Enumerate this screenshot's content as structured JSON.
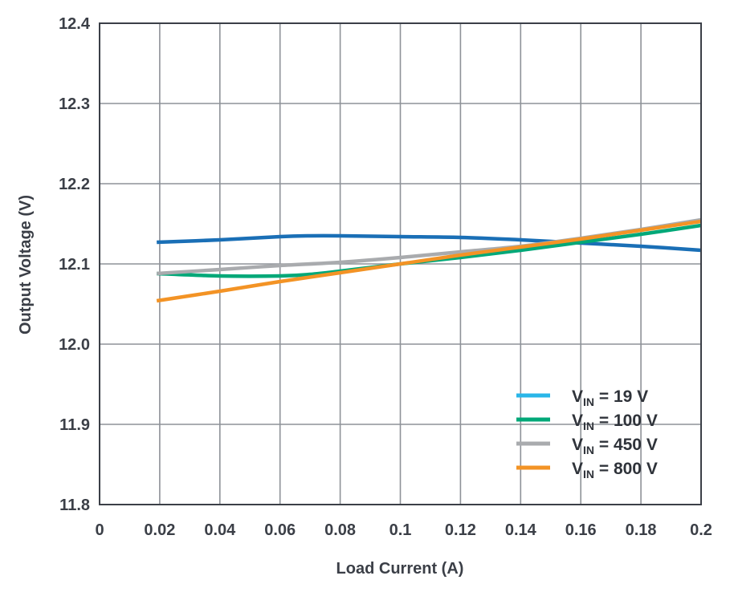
{
  "chart_data": {
    "type": "line",
    "xlabel": "Load Current (A)",
    "ylabel": "Output Voltage (V)",
    "xlim": [
      0,
      0.2
    ],
    "ylim": [
      11.8,
      12.4
    ],
    "grid": true,
    "legend_position": "bottom-right",
    "x_ticks": [
      {
        "value": 0,
        "label": "0"
      },
      {
        "value": 0.02,
        "label": "0.02"
      },
      {
        "value": 0.04,
        "label": "0.04"
      },
      {
        "value": 0.06,
        "label": "0.06"
      },
      {
        "value": 0.08,
        "label": "0.08"
      },
      {
        "value": 0.1,
        "label": "0.1"
      },
      {
        "value": 0.12,
        "label": "0.12"
      },
      {
        "value": 0.14,
        "label": "0.14"
      },
      {
        "value": 0.16,
        "label": "0.16"
      },
      {
        "value": 0.18,
        "label": "0.18"
      },
      {
        "value": 0.2,
        "label": "0.2"
      }
    ],
    "y_ticks": [
      {
        "value": 12.4,
        "label": "12.4"
      },
      {
        "value": 12.3,
        "label": "12.3"
      },
      {
        "value": 12.2,
        "label": "12.2"
      },
      {
        "value": 12.1,
        "label": "12.1"
      },
      {
        "value": 12.0,
        "label": "12.0"
      },
      {
        "value": 11.9,
        "label": "11.9"
      },
      {
        "value": 11.8,
        "label": "11.8"
      }
    ],
    "series": [
      {
        "name": "VIN = 19 V",
        "legend_main": "V",
        "legend_sub": "IN",
        "legend_rest": " = 19 V",
        "color": "#1a6fb6",
        "legend_color": "#29b6e8",
        "x": [
          0.019,
          0.04,
          0.06,
          0.07,
          0.08,
          0.1,
          0.12,
          0.14,
          0.16,
          0.18,
          0.2
        ],
        "y": [
          12.127,
          12.13,
          12.134,
          12.135,
          12.135,
          12.134,
          12.133,
          12.13,
          12.126,
          12.122,
          12.117
        ]
      },
      {
        "name": "VIN = 100 V",
        "legend_main": "V",
        "legend_sub": "IN",
        "legend_rest": " = 100 V",
        "color": "#00a878",
        "legend_color": "#00a878",
        "x": [
          0.019,
          0.04,
          0.06,
          0.07,
          0.08,
          0.1,
          0.12,
          0.14,
          0.16,
          0.18,
          0.2
        ],
        "y": [
          12.088,
          12.085,
          12.085,
          12.087,
          12.091,
          12.1,
          12.108,
          12.117,
          12.127,
          12.137,
          12.148
        ]
      },
      {
        "name": "VIN = 450 V",
        "legend_main": "V",
        "legend_sub": "IN",
        "legend_rest": " = 450 V",
        "color": "#a9abae",
        "legend_color": "#a9abae",
        "x": [
          0.019,
          0.04,
          0.06,
          0.08,
          0.1,
          0.12,
          0.14,
          0.16,
          0.18,
          0.2
        ],
        "y": [
          12.088,
          12.093,
          12.098,
          12.102,
          12.108,
          12.115,
          12.122,
          12.132,
          12.143,
          12.155
        ]
      },
      {
        "name": "VIN = 800 V",
        "legend_main": "V",
        "legend_sub": "IN",
        "legend_rest": " = 800 V",
        "color": "#f39325",
        "legend_color": "#f39325",
        "x": [
          0.019,
          0.04,
          0.06,
          0.08,
          0.1,
          0.12,
          0.14,
          0.16,
          0.18,
          0.2
        ],
        "y": [
          12.054,
          12.066,
          12.078,
          12.089,
          12.1,
          12.111,
          12.121,
          12.131,
          12.142,
          12.153
        ]
      }
    ]
  }
}
